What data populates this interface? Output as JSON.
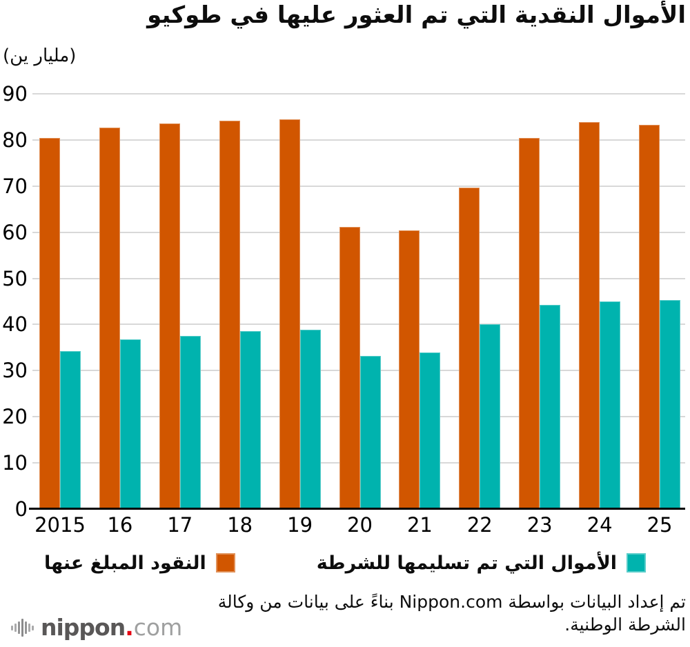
{
  "title": "الأموال النقدية التي تم العثور عليها في طوكيو",
  "unit_label": "(مليار ين)",
  "chart_data": {
    "type": "bar",
    "title": "الأموال النقدية التي تم العثور عليها في طوكيو",
    "ylabel": "(مليار ين)",
    "xlabel": "",
    "categories": [
      "2015",
      "16",
      "17",
      "18",
      "19",
      "20",
      "21",
      "22",
      "23",
      "24",
      "25"
    ],
    "series": [
      {
        "name": "النقود المبلغ عنها",
        "color": "#d15600",
        "values": [
          80.4,
          82.7,
          83.5,
          84.2,
          84.5,
          61.1,
          60.4,
          69.6,
          80.5,
          83.8,
          83.3
        ]
      },
      {
        "name": "الأموال التي تم تسليمها للشرطة",
        "color": "#00b3ae",
        "values": [
          34.2,
          36.8,
          37.6,
          38.5,
          38.9,
          33.2,
          34.0,
          40.1,
          44.2,
          45.0,
          45.3
        ]
      }
    ],
    "ylim": [
      0,
      90
    ],
    "ytick_step": 10,
    "grid": "horizontal",
    "gridline_color": "#d8d8d8",
    "axis_line_color": "#000000",
    "legend_position": "bottom"
  },
  "footer": {
    "line1": "تم إعداد البيانات بواسطة Nippon.com بناءً على بيانات من وكالة",
    "line2": "الشرطة الوطنية."
  },
  "logo": {
    "name": "nippon",
    "dot": ".",
    "suffix": "com"
  }
}
